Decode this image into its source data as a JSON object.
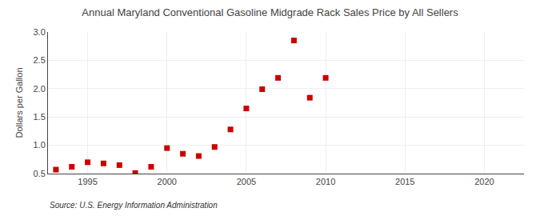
{
  "chart_data": {
    "type": "scatter",
    "title": "Annual Maryland Conventional Gasoline Midgrade Rack Sales Price by All Sellers",
    "y_label": "Dollars per Gallon",
    "annotations": [
      "Source: U.S. Energy Information Administration"
    ],
    "x": [
      1993,
      1994,
      1995,
      1996,
      1997,
      1998,
      1999,
      2000,
      2001,
      2002,
      2003,
      2004,
      2005,
      2006,
      2007,
      2008,
      2009,
      2010
    ],
    "values": [
      0.57,
      0.62,
      0.7,
      0.68,
      0.65,
      0.51,
      0.62,
      0.95,
      0.85,
      0.81,
      0.97,
      1.28,
      1.65,
      1.99,
      2.19,
      2.85,
      1.84,
      2.19
    ],
    "color": "#cc0000",
    "marker": "square",
    "xlim": [
      1992.5,
      2022.5
    ],
    "ylim": [
      0.5,
      3.0
    ],
    "xticks": [
      1995,
      2000,
      2005,
      2010,
      2015,
      2020
    ],
    "yticks": [
      0.5,
      {
        "value": 1.0,
        "label": "1.0"
      },
      1.5,
      {
        "value": 2.0,
        "label": "2.0"
      },
      2.5,
      {
        "value": 3.0,
        "label": "3.0"
      }
    ],
    "grid": true
  }
}
